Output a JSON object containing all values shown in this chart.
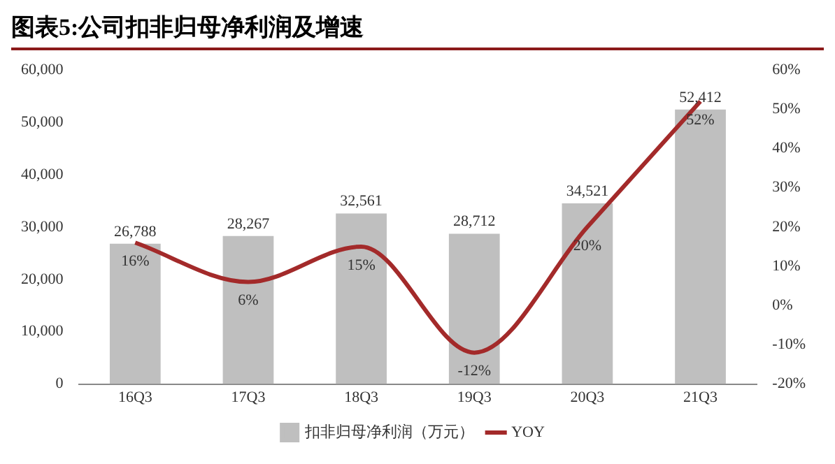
{
  "chart_data": {
    "type": "bar",
    "title": "图表5:公司扣非归母净利润及增速",
    "categories": [
      "16Q3",
      "17Q3",
      "18Q3",
      "19Q3",
      "20Q3",
      "21Q3"
    ],
    "series": [
      {
        "name": "扣非归母净利润（万元）",
        "color": "#bfbfbf",
        "values": [
          26788,
          28267,
          32561,
          28712,
          34521,
          52412
        ],
        "value_labels": [
          "26,788",
          "28,267",
          "32,561",
          "28,712",
          "34,521",
          "52,412"
        ]
      },
      {
        "name": "YOY",
        "type": "line",
        "axis": "y2",
        "color": "#a32a2a",
        "values": [
          16,
          6,
          15,
          -12,
          20,
          52
        ],
        "value_labels": [
          "16%",
          "6%",
          "15%",
          "-12%",
          "20%",
          "52%"
        ]
      }
    ],
    "ylim": [
      0,
      60000
    ],
    "yticks": [
      0,
      {
        "value": 10000,
        "label": "10,000"
      },
      {
        "value": 20000,
        "label": "20,000"
      },
      {
        "value": 30000,
        "label": "30,000"
      },
      {
        "value": 40000,
        "label": "40,000"
      },
      {
        "value": 50000,
        "label": "50,000"
      },
      {
        "value": 60000,
        "label": "60,000"
      }
    ],
    "y2lim": [
      -20,
      60
    ],
    "y2ticks": [
      {
        "value": -20,
        "label": "-20%"
      },
      {
        "value": -10,
        "label": "-10%"
      },
      {
        "value": 0,
        "label": "0%"
      },
      {
        "value": 10,
        "label": "10%"
      },
      {
        "value": 20,
        "label": "20%"
      },
      {
        "value": 30,
        "label": "30%"
      },
      {
        "value": 40,
        "label": "40%"
      },
      {
        "value": 50,
        "label": "50%"
      },
      {
        "value": 60,
        "label": "60%"
      }
    ],
    "legend": "bottom",
    "grid": false,
    "marker": "none",
    "line_style": "solid"
  }
}
